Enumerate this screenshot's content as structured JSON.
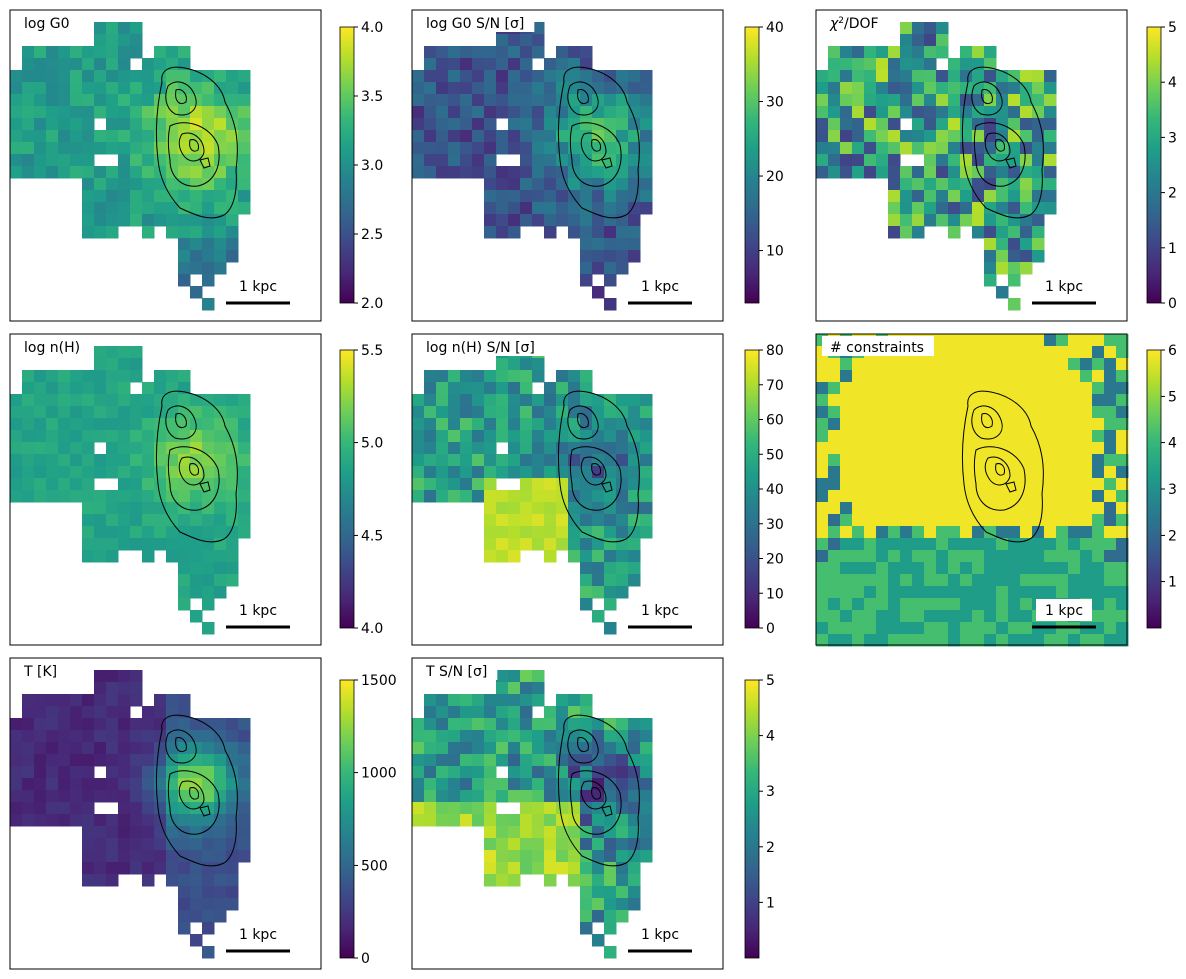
{
  "figure": {
    "scalebar_label": "1 kpc",
    "colormap": "viridis",
    "colormap_stops": [
      "#440154",
      "#482878",
      "#3e4989",
      "#31688e",
      "#26828e",
      "#1f9e89",
      "#35b779",
      "#6ece58",
      "#b5de2b",
      "#fde725"
    ],
    "panels": [
      {
        "id": "logG0",
        "title": "log G0",
        "has_sn": false
      },
      {
        "id": "logG0_sn",
        "title": "log G0 S/N [σ]",
        "has_sn": true
      },
      {
        "id": "chi2",
        "title": "χ²/DOF",
        "title_main": "χ",
        "title_sup": "2",
        "title_rest": "/DOF",
        "has_sn": false
      },
      {
        "id": "lognH",
        "title": "log n(H)",
        "has_sn": false
      },
      {
        "id": "lognH_sn",
        "title": "log n(H) S/N [σ]",
        "has_sn": true
      },
      {
        "id": "nconstraints",
        "title": "# constraints",
        "has_sn": false
      },
      {
        "id": "T",
        "title": "T [K]",
        "has_sn": false
      },
      {
        "id": "T_sn",
        "title": "T  S/N [σ]",
        "has_sn": true
      }
    ]
  },
  "chart_data": [
    {
      "type": "heatmap",
      "title": "log G0",
      "colorbar_range": [
        2.0,
        4.0
      ],
      "colorbar_ticks": [
        "2.0",
        "2.5",
        "3.0",
        "3.5",
        "4.0"
      ],
      "colormap": "viridis",
      "annotation": "1 kpc"
    },
    {
      "type": "heatmap",
      "title": "log G0 S/N [σ]",
      "colorbar_range": [
        3,
        40
      ],
      "colorbar_ticks": [
        "10",
        "20",
        "30",
        "40"
      ],
      "colormap": "viridis",
      "annotation": "1 kpc"
    },
    {
      "type": "heatmap",
      "title": "χ²/DOF",
      "colorbar_range": [
        0,
        5
      ],
      "colorbar_ticks": [
        "0",
        "1",
        "2",
        "3",
        "4",
        "5"
      ],
      "colormap": "viridis",
      "annotation": "1 kpc"
    },
    {
      "type": "heatmap",
      "title": "log n(H)",
      "colorbar_range": [
        4.0,
        5.5
      ],
      "colorbar_ticks": [
        "4.0",
        "4.5",
        "5.0",
        "5.5"
      ],
      "colormap": "viridis",
      "annotation": "1 kpc"
    },
    {
      "type": "heatmap",
      "title": "log n(H) S/N [σ]",
      "colorbar_range": [
        0,
        80
      ],
      "colorbar_ticks": [
        "0",
        "10",
        "20",
        "30",
        "40",
        "50",
        "60",
        "70",
        "80"
      ],
      "colormap": "viridis",
      "annotation": "1 kpc"
    },
    {
      "type": "heatmap",
      "title": "# constraints",
      "colorbar_range": [
        0,
        6
      ],
      "colorbar_ticks": [
        "1",
        "2",
        "3",
        "4",
        "5",
        "6"
      ],
      "colormap": "viridis",
      "annotation": "1 kpc"
    },
    {
      "type": "heatmap",
      "title": "T [K]",
      "colorbar_range": [
        0,
        1500
      ],
      "colorbar_ticks": [
        "0",
        "500",
        "1000",
        "1500"
      ],
      "colormap": "viridis",
      "annotation": "1 kpc"
    },
    {
      "type": "heatmap",
      "title": "T  S/N [σ]",
      "colorbar_range": [
        0,
        5
      ],
      "colorbar_ticks": [
        "1",
        "2",
        "3",
        "4",
        "5"
      ],
      "colormap": "viridis",
      "annotation": "1 kpc"
    }
  ]
}
